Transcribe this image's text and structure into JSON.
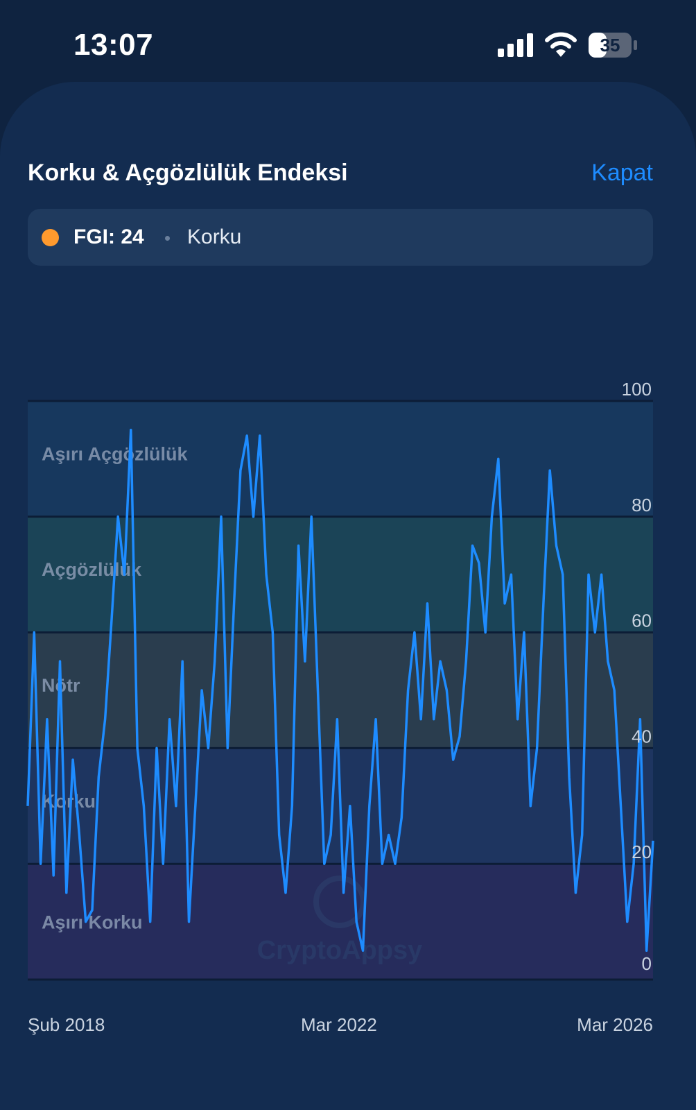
{
  "status": {
    "time": "13:07",
    "battery": "35"
  },
  "sheet": {
    "title": "Korku & Açgözlülük Endeksi",
    "close_label": "Kapat"
  },
  "fgi": {
    "label": "FGI: 24",
    "state": "Korku",
    "dot_color": "#ff9a2e"
  },
  "colors": {
    "accent": "#1e8cff",
    "background": "#0f2340",
    "sheet": "#132c50"
  },
  "chart_data": {
    "type": "line",
    "x_range": [
      "Şub 2018",
      "Mar 2026"
    ],
    "x_ticks": [
      "Şub 2018",
      "Mar 2022",
      "Mar 2026"
    ],
    "ylim": [
      0,
      100
    ],
    "y_ticks": [
      100,
      80,
      60,
      40,
      20,
      0
    ],
    "y_axis_position": "right",
    "bands": [
      {
        "label": "Aşırı Açgözlülük",
        "from": 80,
        "to": 100,
        "color": "#17385e"
      },
      {
        "label": "Açgözlülük",
        "from": 60,
        "to": 80,
        "color": "#1b4457"
      },
      {
        "label": "Nötr",
        "from": 40,
        "to": 60,
        "color": "#2a3d4e"
      },
      {
        "label": "Korku",
        "from": 20,
        "to": 40,
        "color": "#1e3560"
      },
      {
        "label": "Aşırı Korku",
        "from": 0,
        "to": 20,
        "color": "#262c5c"
      }
    ],
    "watermark": "CryptoAppsy",
    "series": [
      {
        "color": "#1e8cff",
        "points": [
          [
            "2018-02",
            30
          ],
          [
            "2018-03",
            60
          ],
          [
            "2018-04",
            20
          ],
          [
            "2018-05",
            45
          ],
          [
            "2018-06",
            18
          ],
          [
            "2018-07",
            55
          ],
          [
            "2018-08",
            15
          ],
          [
            "2018-09",
            38
          ],
          [
            "2018-10",
            25
          ],
          [
            "2018-11",
            10
          ],
          [
            "2018-12",
            12
          ],
          [
            "2019-01",
            35
          ],
          [
            "2019-02",
            45
          ],
          [
            "2019-03",
            62
          ],
          [
            "2019-04",
            80
          ],
          [
            "2019-05",
            70
          ],
          [
            "2019-06",
            95
          ],
          [
            "2019-07",
            40
          ],
          [
            "2019-08",
            30
          ],
          [
            "2019-09",
            10
          ],
          [
            "2019-10",
            40
          ],
          [
            "2019-11",
            20
          ],
          [
            "2019-12",
            45
          ],
          [
            "2020-01",
            30
          ],
          [
            "2020-02",
            55
          ],
          [
            "2020-03",
            10
          ],
          [
            "2020-04",
            30
          ],
          [
            "2020-05",
            50
          ],
          [
            "2020-06",
            40
          ],
          [
            "2020-07",
            55
          ],
          [
            "2020-08",
            80
          ],
          [
            "2020-09",
            40
          ],
          [
            "2020-10",
            65
          ],
          [
            "2020-11",
            88
          ],
          [
            "2020-12",
            94
          ],
          [
            "2021-01",
            80
          ],
          [
            "2021-02",
            94
          ],
          [
            "2021-03",
            70
          ],
          [
            "2021-04",
            60
          ],
          [
            "2021-05",
            25
          ],
          [
            "2021-06",
            15
          ],
          [
            "2021-07",
            30
          ],
          [
            "2021-08",
            75
          ],
          [
            "2021-09",
            55
          ],
          [
            "2021-10",
            80
          ],
          [
            "2021-11",
            50
          ],
          [
            "2021-12",
            20
          ],
          [
            "2022-01",
            25
          ],
          [
            "2022-02",
            45
          ],
          [
            "2022-03",
            15
          ],
          [
            "2022-04",
            30
          ],
          [
            "2022-05",
            10
          ],
          [
            "2022-06",
            5
          ],
          [
            "2022-07",
            30
          ],
          [
            "2022-08",
            45
          ],
          [
            "2022-09",
            20
          ],
          [
            "2022-10",
            25
          ],
          [
            "2022-11",
            20
          ],
          [
            "2022-12",
            28
          ],
          [
            "2023-01",
            50
          ],
          [
            "2023-02",
            60
          ],
          [
            "2023-03",
            45
          ],
          [
            "2023-04",
            65
          ],
          [
            "2023-05",
            45
          ],
          [
            "2023-06",
            55
          ],
          [
            "2023-07",
            50
          ],
          [
            "2023-08",
            38
          ],
          [
            "2023-09",
            42
          ],
          [
            "2023-10",
            55
          ],
          [
            "2023-11",
            75
          ],
          [
            "2023-12",
            72
          ],
          [
            "2024-01",
            60
          ],
          [
            "2024-02",
            80
          ],
          [
            "2024-03",
            90
          ],
          [
            "2024-04",
            65
          ],
          [
            "2024-05",
            70
          ],
          [
            "2024-06",
            45
          ],
          [
            "2024-07",
            60
          ],
          [
            "2024-08",
            30
          ],
          [
            "2024-09",
            40
          ],
          [
            "2024-10",
            65
          ],
          [
            "2024-11",
            88
          ],
          [
            "2024-12",
            75
          ],
          [
            "2025-01",
            70
          ],
          [
            "2025-02",
            35
          ],
          [
            "2025-03",
            15
          ],
          [
            "2025-04",
            25
          ],
          [
            "2025-05",
            70
          ],
          [
            "2025-06",
            60
          ],
          [
            "2025-07",
            70
          ],
          [
            "2025-08",
            55
          ],
          [
            "2025-09",
            50
          ],
          [
            "2025-10",
            30
          ],
          [
            "2025-11",
            10
          ],
          [
            "2025-12",
            20
          ],
          [
            "2026-01",
            45
          ],
          [
            "2026-02",
            5
          ],
          [
            "2026-03",
            24
          ]
        ]
      }
    ]
  }
}
